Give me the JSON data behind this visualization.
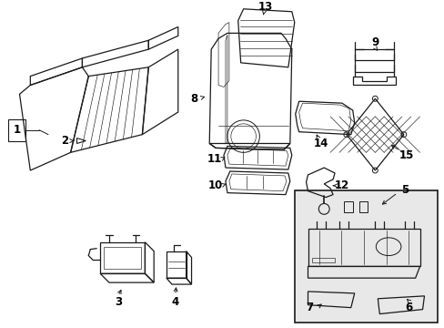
{
  "bg_color": "#ffffff",
  "line_color": "#1a1a1a",
  "label_color": "#000000",
  "font_size": 8.5,
  "inset_bg": "#e8e8e8",
  "lw_main": 0.9,
  "lw_thin": 0.45
}
